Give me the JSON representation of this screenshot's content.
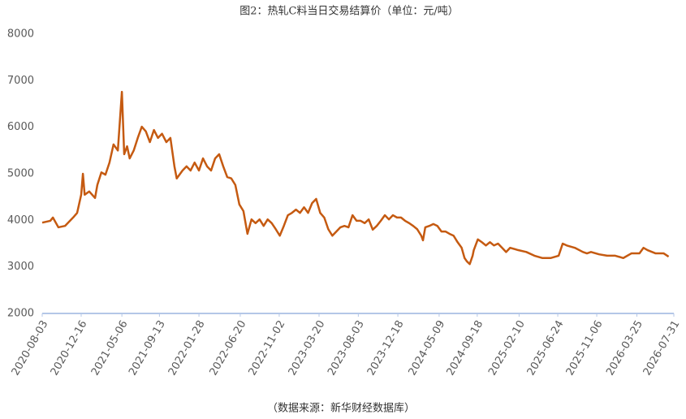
{
  "chart_data": {
    "type": "line",
    "title": "图2：热轧C料当日交易结算价（单位：元/吨）",
    "source": "（数据来源：新华财经数据库）",
    "color": "#c55a11",
    "x": [
      "2020-08-03",
      "2020-08-31",
      "2020-09-09",
      "2020-09-28",
      "2020-10-21",
      "2020-11-18",
      "2020-12-02",
      "2020-12-16",
      "2020-12-22",
      "2020-12-28",
      "2021-01-13",
      "2021-02-02",
      "2021-02-10",
      "2021-02-24",
      "2021-03-10",
      "2021-03-24",
      "2021-04-07",
      "2021-04-22",
      "2021-05-06",
      "2021-05-14",
      "2021-05-24",
      "2021-06-02",
      "2021-06-16",
      "2021-06-30",
      "2021-07-14",
      "2021-07-28",
      "2021-08-11",
      "2021-08-25",
      "2021-09-08",
      "2021-09-22",
      "2021-10-07",
      "2021-10-21",
      "2021-11-04",
      "2021-11-12",
      "2021-12-02",
      "2021-12-16",
      "2021-12-30",
      "2022-01-13",
      "2022-01-28",
      "2022-02-11",
      "2022-02-25",
      "2022-03-11",
      "2022-03-25",
      "2022-04-08",
      "2022-04-22",
      "2022-05-06",
      "2022-05-20",
      "2022-06-03",
      "2022-06-17",
      "2022-07-01",
      "2022-07-15",
      "2022-07-29",
      "2022-08-12",
      "2022-08-26",
      "2022-09-09",
      "2022-09-23",
      "2022-10-07",
      "2022-10-21",
      "2022-11-04",
      "2022-11-18",
      "2022-12-02",
      "2022-12-16",
      "2022-12-30",
      "2023-01-13",
      "2023-01-27",
      "2023-02-10",
      "2023-02-24",
      "2023-03-10",
      "2023-03-24",
      "2023-04-07",
      "2023-04-21",
      "2023-05-05",
      "2023-05-19",
      "2023-06-02",
      "2023-06-16",
      "2023-06-30",
      "2023-07-14",
      "2023-07-28",
      "2023-08-11",
      "2023-08-25",
      "2023-09-08",
      "2023-09-22",
      "2023-10-06",
      "2023-10-20",
      "2023-11-03",
      "2023-11-17",
      "2023-12-01",
      "2023-12-15",
      "2023-12-29",
      "2024-01-12",
      "2024-01-26",
      "2024-02-09",
      "2024-02-23",
      "2024-03-08",
      "2024-03-14",
      "2024-03-22",
      "2024-04-05",
      "2024-04-19",
      "2024-05-03",
      "2024-05-17",
      "2024-05-31",
      "2024-06-14",
      "2024-06-28",
      "2024-07-12",
      "2024-07-26",
      "2024-08-05",
      "2024-08-13",
      "2024-08-23",
      "2024-09-02",
      "2024-09-06",
      "2024-09-20",
      "2024-10-04",
      "2024-10-18",
      "2024-11-01",
      "2024-11-15",
      "2024-11-29",
      "2024-12-13",
      "2024-12-27",
      "2025-01-10",
      "2025-02-07",
      "2025-03-07",
      "2025-04-04",
      "2025-05-02",
      "2025-05-30",
      "2025-06-27",
      "2025-07-11",
      "2025-07-25",
      "2025-08-22",
      "2025-09-19",
      "2025-10-03",
      "2025-10-17",
      "2025-11-14",
      "2025-12-12",
      "2026-01-09",
      "2026-02-06",
      "2026-03-06",
      "2026-04-03",
      "2026-04-17",
      "2026-05-01",
      "2026-05-29",
      "2026-06-26",
      "2026-07-13"
    ],
    "values": [
      3950,
      3990,
      4060,
      3850,
      3880,
      4060,
      4160,
      4550,
      5000,
      4550,
      4620,
      4480,
      4760,
      5030,
      4980,
      5240,
      5630,
      5500,
      6760,
      5420,
      5590,
      5330,
      5500,
      5770,
      6010,
      5910,
      5680,
      5940,
      5770,
      5860,
      5680,
      5770,
      5160,
      4900,
      5070,
      5160,
      5070,
      5240,
      5070,
      5330,
      5160,
      5070,
      5330,
      5420,
      5160,
      4930,
      4900,
      4760,
      4340,
      4200,
      3710,
      4020,
      3940,
      4020,
      3880,
      4020,
      3940,
      3810,
      3670,
      3880,
      4110,
      4160,
      4230,
      4160,
      4280,
      4160,
      4370,
      4460,
      4160,
      4060,
      3810,
      3670,
      3760,
      3850,
      3880,
      3850,
      4110,
      3990,
      3990,
      3940,
      4020,
      3800,
      3880,
      3990,
      4110,
      4020,
      4110,
      4060,
      4060,
      3990,
      3940,
      3880,
      3810,
      3670,
      3570,
      3850,
      3880,
      3920,
      3880,
      3760,
      3760,
      3710,
      3670,
      3530,
      3410,
      3190,
      3120,
      3060,
      3240,
      3360,
      3590,
      3530,
      3460,
      3530,
      3460,
      3500,
      3410,
      3320,
      3410,
      3360,
      3320,
      3240,
      3190,
      3190,
      3240,
      3500,
      3460,
      3410,
      3320,
      3290,
      3320,
      3270,
      3240,
      3240,
      3190,
      3290,
      3290,
      3410,
      3360,
      3290,
      3290,
      3220
    ],
    "xlim": [
      "2020-08-03",
      "2026-07-31"
    ],
    "xticks": [
      "2020-08-03",
      "2020-12-16",
      "2021-05-06",
      "2021-09-13",
      "2022-01-28",
      "2022-06-20",
      "2022-11-02",
      "2023-03-20",
      "2023-08-03",
      "2023-12-18",
      "2024-05-09",
      "2024-09-18",
      "2025-02-10",
      "2025-06-24",
      "2025-11-06",
      "2026-03-25",
      "2026-07-31"
    ],
    "ylim": [
      2000,
      8000
    ],
    "yticks": [
      2000,
      3000,
      4000,
      5000,
      6000,
      7000,
      8000
    ],
    "grid": false
  }
}
